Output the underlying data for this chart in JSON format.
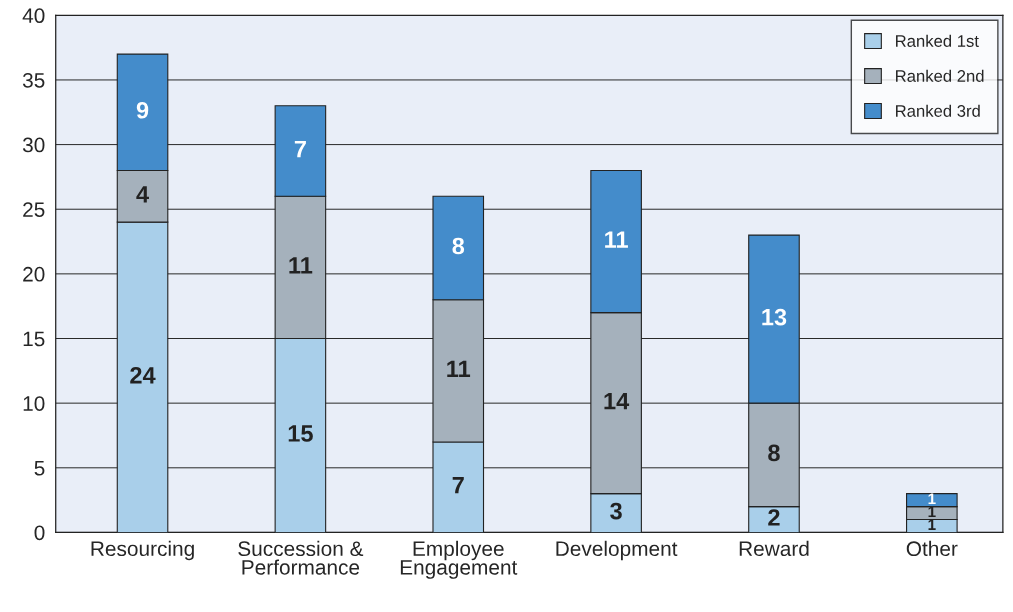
{
  "chart_data": {
    "type": "bar",
    "stacked": true,
    "categories": [
      "Resourcing",
      "Succession &\nPerformance",
      "Employee\nEngagement",
      "Development",
      "Reward",
      "Other"
    ],
    "series": [
      {
        "name": "Ranked 1st",
        "color": "#a9cfea",
        "values": [
          24,
          15,
          7,
          3,
          2,
          1
        ]
      },
      {
        "name": "Ranked 2nd",
        "color": "#a5b1bc",
        "values": [
          4,
          11,
          11,
          14,
          8,
          1
        ]
      },
      {
        "name": "Ranked 3rd",
        "color": "#448ccb",
        "values": [
          9,
          7,
          8,
          11,
          13,
          1
        ]
      }
    ],
    "ylim": [
      0,
      40
    ],
    "yticks": [
      0,
      5,
      10,
      15,
      20,
      25,
      30,
      35,
      40
    ],
    "grid": "y",
    "legend": "top right",
    "data_labels": true
  }
}
